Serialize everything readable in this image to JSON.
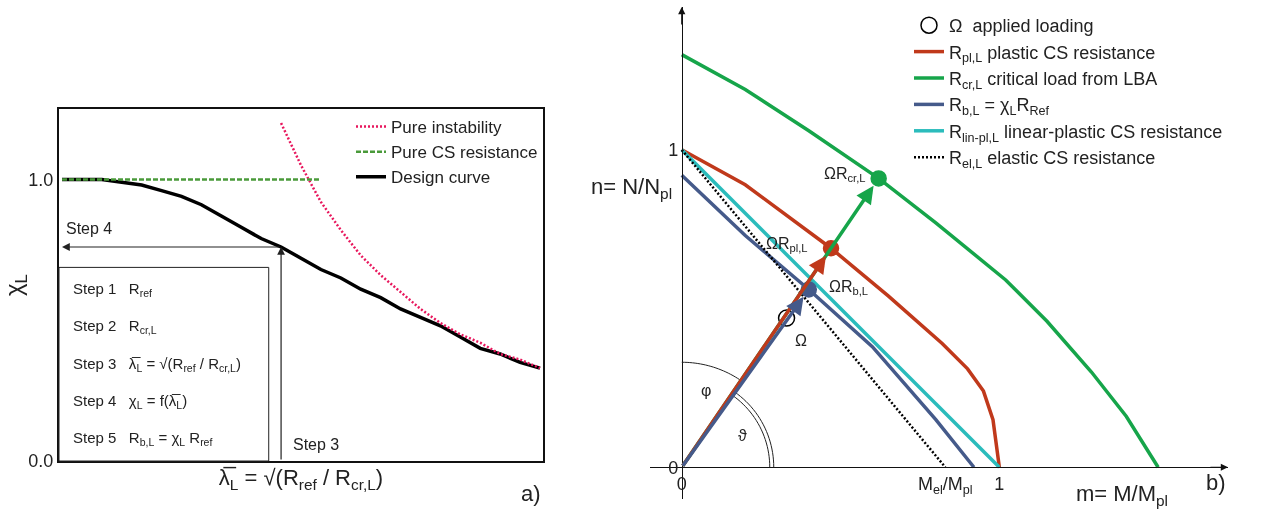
{
  "chart_data": [
    {
      "type": "line",
      "xlabel": "λ̅$_{L}$ = √(R$_{ref}$ / R$_{cr,L}$)",
      "ylabel": "χ$_{L}$",
      "categories": [
        null,
        null,
        null,
        null,
        null,
        null,
        null,
        null,
        null,
        null,
        null,
        null,
        null,
        null,
        null,
        null,
        null,
        null,
        null,
        null,
        null,
        null,
        null,
        null,
        null
      ],
      "ylim": [
        0,
        1.25
      ],
      "yticks": [
        {
          "value": 0,
          "label": "0.0"
        },
        {
          "value": 1,
          "label": "1.0"
        }
      ],
      "tick_labels": "y",
      "legend": "top right",
      "grid": false,
      "annotations": [
        "a)",
        "Step 4",
        "Step 3",
        "Step 1   R$_{ref}$",
        "Step 2   R$_{cr,L}$",
        "Step 3   λ̅$_{L}$ = √(R$_{ref}$ / R$_{cr,L}$)",
        "Step 4   χ$_{L}$ = f(λ̅$_{L}$)",
        "Step 5   R$_{b,L}$ = χ$_{L}$ R$_{ref}$"
      ],
      "series": [
        {
          "name": "Pure instability",
          "color": "#e8175d",
          "line_style": "dotted",
          "values": [
            null,
            null,
            null,
            null,
            null,
            null,
            null,
            null,
            null,
            null,
            null,
            1.2,
            1.05,
            0.92,
            0.82,
            0.73,
            0.66,
            0.6,
            0.54,
            0.49,
            0.45,
            0.42,
            0.38,
            0.36,
            0.33
          ]
        },
        {
          "name": "Pure CS resistance",
          "color": "#4a9a3a",
          "line_style": "dashed",
          "values": [
            1,
            1,
            1,
            1,
            1,
            1,
            1,
            1,
            1,
            1,
            1,
            1,
            1,
            1,
            null,
            null,
            null,
            null,
            null,
            null,
            null,
            null,
            null,
            null,
            null
          ]
        },
        {
          "name": "Design curve",
          "color": "#000000",
          "values": [
            1,
            1,
            1,
            0.99,
            0.98,
            0.96,
            0.94,
            0.91,
            0.87,
            0.83,
            0.79,
            0.76,
            0.72,
            0.68,
            0.65,
            0.61,
            0.58,
            0.54,
            0.51,
            0.48,
            0.44,
            0.4,
            0.38,
            0.35,
            0.33
          ]
        }
      ]
    },
    {
      "type": "line",
      "xlabel": "m= M/M$_{pl}$",
      "ylabel": "n= N/N$_{pl}$",
      "xlim": [
        -0.1,
        1.72
      ],
      "ylim": [
        -0.1,
        1.45
      ],
      "xticks": [
        0,
        {
          "value": 0.83,
          "label": "M$_{el}$/M$_{pl}$"
        },
        1
      ],
      "yticks": [
        0,
        1
      ],
      "legend": "top right",
      "grid": false,
      "annotations": [
        "b)",
        "φ",
        "ϑ",
        {
          "text": "Ω",
          "x": 0.33,
          "y": 0.47
        },
        {
          "text": "ΩR$_{b,L}$",
          "x": 0.4,
          "y": 0.56
        },
        {
          "text": "ΩR$_{pl,L}$",
          "x": 0.47,
          "y": 0.69
        },
        {
          "text": "ΩR$_{cr,L}$",
          "x": 0.62,
          "y": 0.91
        }
      ],
      "series": [
        {
          "name": "Ω  applied loading",
          "type": "scatter",
          "color": "#000000",
          "x": [
            0.33
          ],
          "values": [
            0.47
          ]
        },
        {
          "name": "R$_{pl,L}$ plastic CS resistance",
          "color": "#c0391b",
          "x": [
            0,
            0.2,
            0.47,
            0.65,
            0.82,
            0.9,
            0.95,
            0.98,
            1
          ],
          "values": [
            1,
            0.89,
            0.69,
            0.54,
            0.39,
            0.31,
            0.24,
            0.15,
            0
          ]
        },
        {
          "name": "R$_{cr,L}$ critical load from LBA",
          "color": "#16a54a",
          "x": [
            0,
            0.2,
            0.4,
            0.62,
            0.8,
            1.02,
            1.15,
            1.29,
            1.4,
            1.5
          ],
          "values": [
            1.3,
            1.19,
            1.06,
            0.91,
            0.77,
            0.59,
            0.46,
            0.3,
            0.16,
            0
          ]
        },
        {
          "name": "R$_{b,L}$ = χ$_{L}$R$_{Ref}$",
          "color": "#455a8a",
          "x": [
            0,
            0.2,
            0.4,
            0.6,
            0.8,
            0.92
          ],
          "values": [
            0.92,
            0.73,
            0.56,
            0.38,
            0.15,
            0
          ]
        },
        {
          "name": "R$_{lin-pl,L}$ linear-plastic CS resistance",
          "color": "#2bbcbc",
          "x": [
            0,
            1
          ],
          "values": [
            1,
            0
          ]
        },
        {
          "name": "R$_{el,L}$ elastic CS resistance",
          "color": "#000000",
          "line_style": "dotted",
          "x": [
            0,
            0.83
          ],
          "values": [
            1,
            0
          ]
        },
        {
          "type": "scatter",
          "colors": [
            "#16a54a",
            "#c0391b",
            "#455a8a"
          ],
          "x": [
            0.62,
            0.47,
            0.4
          ],
          "values": [
            0.91,
            0.69,
            0.56
          ]
        }
      ]
    }
  ]
}
